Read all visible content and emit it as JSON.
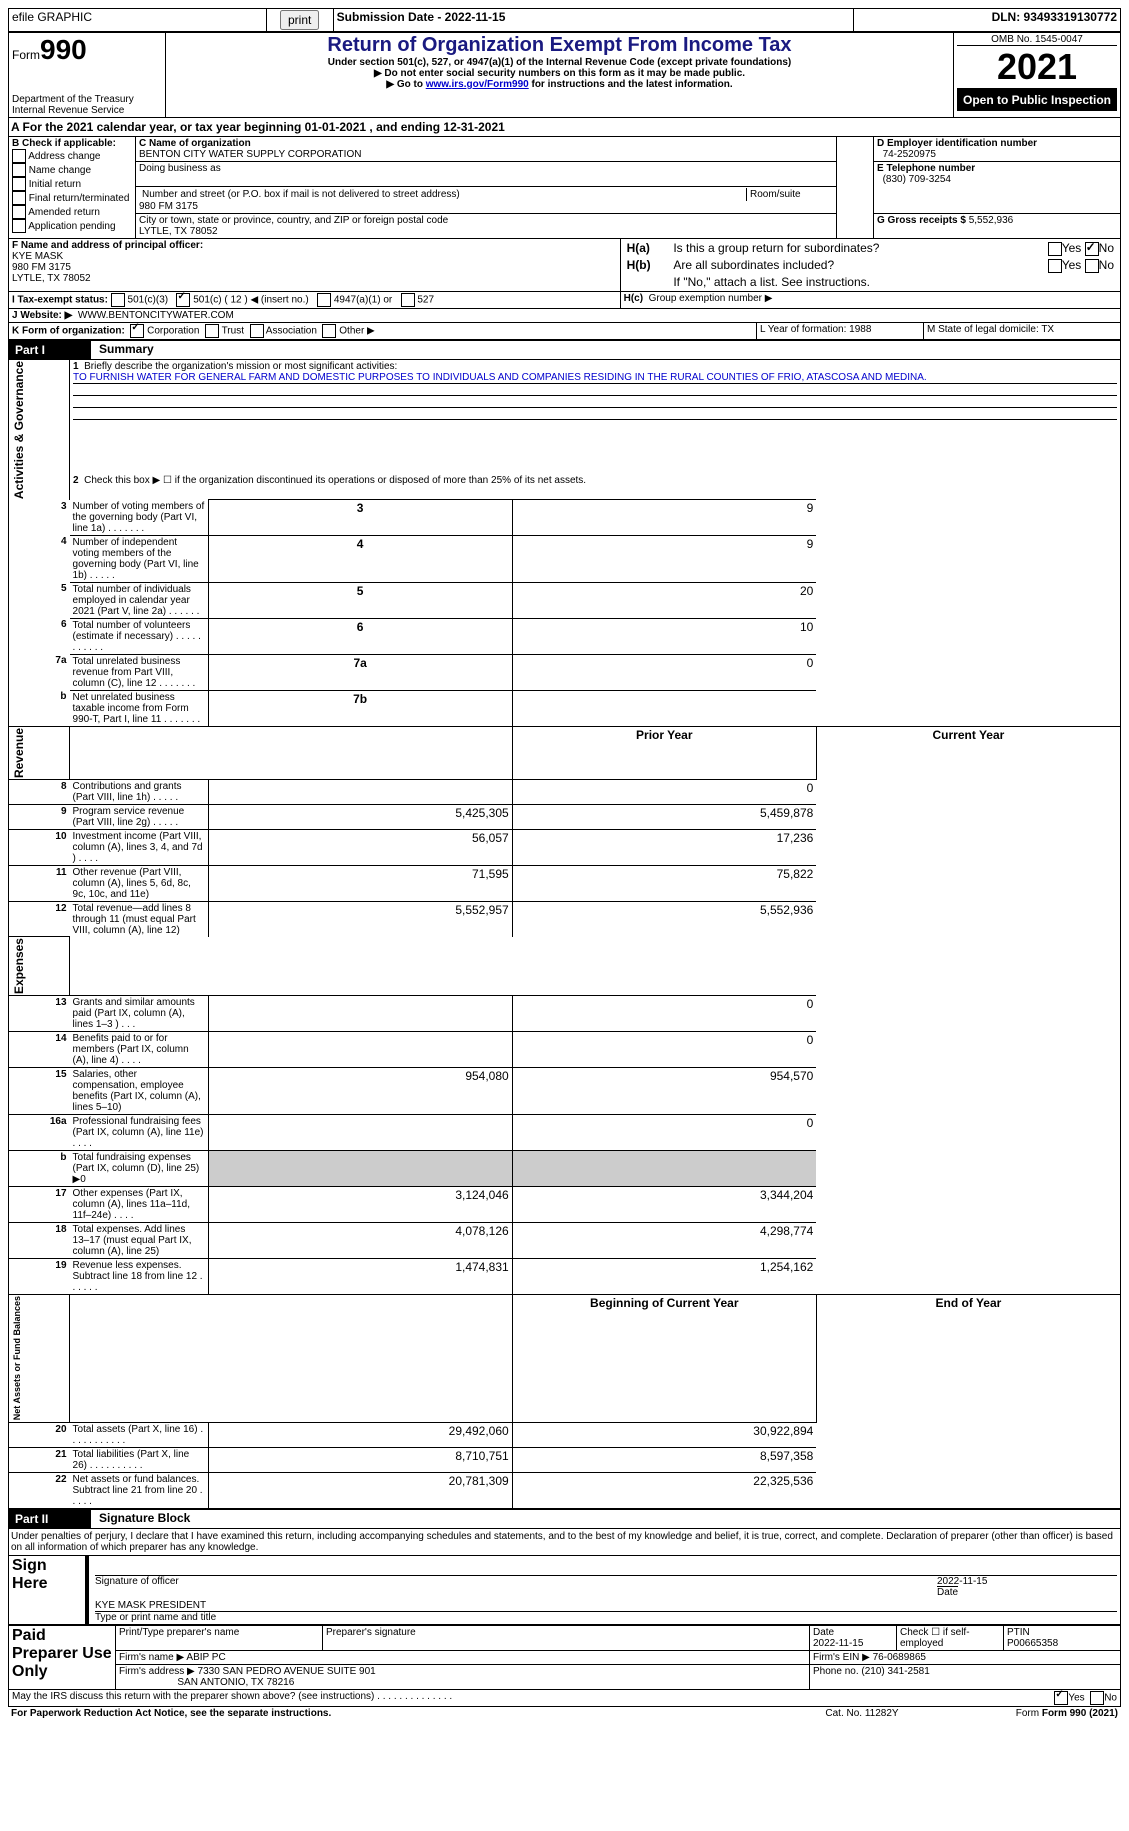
{
  "topbar": {
    "efile": "efile GRAPHIC",
    "print": "print",
    "subdate_label": "Submission Date - 2022-11-15",
    "dln": "DLN: 93493319130772"
  },
  "header": {
    "form_label": "Form",
    "form_num": "990",
    "title": "Return of Organization Exempt From Income Tax",
    "subtitle": "Under section 501(c), 527, or 4947(a)(1) of the Internal Revenue Code (except private foundations)",
    "note1": "▶ Do not enter social security numbers on this form as it may be made public.",
    "note2_pre": "▶ Go to ",
    "note2_link": "www.irs.gov/Form990",
    "note2_post": " for instructions and the latest information.",
    "omb": "OMB No. 1545-0047",
    "year": "2021",
    "open": "Open to Public Inspection",
    "dept": "Department of the Treasury",
    "irs": "Internal Revenue Service"
  },
  "periodA": {
    "pre": "A For the 2021 calendar year, or tax year beginning ",
    "begin": "01-01-2021",
    "mid": " , and ending ",
    "end": "12-31-2021"
  },
  "B": {
    "label": "B Check if applicable:",
    "opts": [
      "Address change",
      "Name change",
      "Initial return",
      "Final return/terminated",
      "Amended return",
      "Application pending"
    ]
  },
  "C": {
    "name_label": "C Name of organization",
    "name": "BENTON CITY WATER SUPPLY CORPORATION",
    "dba_label": "Doing business as",
    "dba": "",
    "street_label": "Number and street (or P.O. box if mail is not delivered to street address)",
    "room_label": "Room/suite",
    "street": "980 FM 3175",
    "city_label": "City or town, state or province, country, and ZIP or foreign postal code",
    "city": "LYTLE, TX  78052"
  },
  "D": {
    "label": "D Employer identification number",
    "val": "74-2520975"
  },
  "E": {
    "label": "E Telephone number",
    "val": "(830) 709-3254"
  },
  "G": {
    "label": "G Gross receipts $",
    "val": "5,552,936"
  },
  "F": {
    "label": "F  Name and address of principal officer:",
    "name": "KYE MASK",
    "addr1": "980 FM 3175",
    "addr2": "LYTLE, TX  78052"
  },
  "H": {
    "a": "Is this a group return for subordinates?",
    "a_yes": "Yes",
    "a_no": "No",
    "b": "Are all subordinates included?",
    "b_yes": "Yes",
    "b_no": "No",
    "b_note": "If \"No,\" attach a list. See instructions.",
    "c": "Group exemption number ▶"
  },
  "I": {
    "label": "I   Tax-exempt status:",
    "c3": "501(c)(3)",
    "c": "501(c) ( 12 ) ◀ (insert no.)",
    "a1": "4947(a)(1) or",
    "527": "527"
  },
  "J": {
    "label": "J   Website: ▶",
    "val": "WWW.BENTONCITYWATER.COM"
  },
  "K": {
    "label": "K Form of organization:",
    "corp": "Corporation",
    "trust": "Trust",
    "assoc": "Association",
    "other": "Other ▶"
  },
  "L": {
    "label": "L Year of formation: 1988"
  },
  "M": {
    "label": "M State of legal domicile: TX"
  },
  "part1": {
    "hdr": "Part I",
    "title": "Summary",
    "q1": "Briefly describe the organization's mission or most significant activities:",
    "mission": "TO FURNISH WATER FOR GENERAL FARM AND DOMESTIC PURPOSES TO INDIVIDUALS AND COMPANIES RESIDING IN THE RURAL COUNTIES OF FRIO, ATASCOSA AND MEDINA.",
    "q2": "Check this box ▶ ☐ if the organization discontinued its operations or disposed of more than 25% of its net assets.",
    "side1": "Activities & Governance",
    "side2": "Revenue",
    "side3": "Expenses",
    "side4": "Net Assets or Fund Balances",
    "prior": "Prior Year",
    "current": "Current Year",
    "begin": "Beginning of Current Year",
    "end": "End of Year",
    "rows_gov": [
      {
        "n": "3",
        "t": "Number of voting members of the governing body (Part VI, line 1a)   .    .    .    .    .    .    .",
        "box": "3",
        "v": "9"
      },
      {
        "n": "4",
        "t": "Number of independent voting members of the governing body (Part VI, line 1b)    .    .    .    .    .",
        "box": "4",
        "v": "9"
      },
      {
        "n": "5",
        "t": "Total number of individuals employed in calendar year 2021 (Part V, line 2a)   .    .    .    .    .    .",
        "box": "5",
        "v": "20"
      },
      {
        "n": "6",
        "t": "Total number of volunteers (estimate if necessary)    .    .    .    .    .    .    .    .    .    .    .",
        "box": "6",
        "v": "10"
      },
      {
        "n": "7a",
        "t": "Total unrelated business revenue from Part VIII, column (C), line 12    .    .    .    .    .    .    .",
        "box": "7a",
        "v": "0"
      },
      {
        "n": "b",
        "t": "Net unrelated business taxable income from Form 990-T, Part I, line 11   .    .    .    .    .    .    .",
        "box": "7b",
        "v": ""
      }
    ],
    "rows_rev": [
      {
        "n": "8",
        "t": "Contributions and grants (Part VIII, line 1h)   .    .    .    .    .",
        "p": "",
        "c": "0"
      },
      {
        "n": "9",
        "t": "Program service revenue (Part VIII, line 2g)    .    .    .    .    .",
        "p": "5,425,305",
        "c": "5,459,878"
      },
      {
        "n": "10",
        "t": "Investment income (Part VIII, column (A), lines 3, 4, and 7d )   .    .    .    .",
        "p": "56,057",
        "c": "17,236"
      },
      {
        "n": "11",
        "t": "Other revenue (Part VIII, column (A), lines 5, 6d, 8c, 9c, 10c, and 11e)",
        "p": "71,595",
        "c": "75,822"
      },
      {
        "n": "12",
        "t": "Total revenue—add lines 8 through 11 (must equal Part VIII, column (A), line 12)",
        "p": "5,552,957",
        "c": "5,552,936"
      }
    ],
    "rows_exp": [
      {
        "n": "13",
        "t": "Grants and similar amounts paid (Part IX, column (A), lines 1–3 )   .    .    .",
        "p": "",
        "c": "0"
      },
      {
        "n": "14",
        "t": "Benefits paid to or for members (Part IX, column (A), line 4)   .    .    .    .",
        "p": "",
        "c": "0"
      },
      {
        "n": "15",
        "t": "Salaries, other compensation, employee benefits (Part IX, column (A), lines 5–10)",
        "p": "954,080",
        "c": "954,570"
      },
      {
        "n": "16a",
        "t": "Professional fundraising fees (Part IX, column (A), line 11e)    .    .    .    .",
        "p": "",
        "c": "0"
      },
      {
        "n": "b",
        "t": "Total fundraising expenses (Part IX, column (D), line 25) ▶0",
        "p": "-",
        "c": "-"
      },
      {
        "n": "17",
        "t": "Other expenses (Part IX, column (A), lines 11a–11d, 11f–24e)   .    .    .    .",
        "p": "3,124,046",
        "c": "3,344,204"
      },
      {
        "n": "18",
        "t": "Total expenses. Add lines 13–17 (must equal Part IX, column (A), line 25)",
        "p": "4,078,126",
        "c": "4,298,774"
      },
      {
        "n": "19",
        "t": "Revenue less expenses. Subtract line 18 from line 12   .    .    .    .    .    .",
        "p": "1,474,831",
        "c": "1,254,162"
      }
    ],
    "rows_net": [
      {
        "n": "20",
        "t": "Total assets (Part X, line 16)   .    .    .    .    .    .    .    .    .    .    .",
        "p": "29,492,060",
        "c": "30,922,894"
      },
      {
        "n": "21",
        "t": "Total liabilities (Part X, line 26)   .    .    .    .    .    .    .    .    .    .",
        "p": "8,710,751",
        "c": "8,597,358"
      },
      {
        "n": "22",
        "t": "Net assets or fund balances. Subtract line 21 from line 20   .    .    .    .    .",
        "p": "20,781,309",
        "c": "22,325,536"
      }
    ]
  },
  "part2": {
    "hdr": "Part II",
    "title": "Signature Block",
    "decl": "Under penalties of perjury, I declare that I have examined this return, including accompanying schedules and statements, and to the best of my knowledge and belief, it is true, correct, and complete. Declaration of preparer (other than officer) is based on all information of which preparer has any knowledge.",
    "sign_here": "Sign Here",
    "sig_officer": "Signature of officer",
    "sig_date": "2022-11-15",
    "date_label": "Date",
    "name_title": "KYE MASK  PRESIDENT",
    "type_name": "Type or print name and title",
    "paid": "Paid Preparer Use Only",
    "pp_name": "Print/Type preparer's name",
    "pp_sig": "Preparer's signature",
    "pp_date_label": "Date",
    "pp_date": "2022-11-15",
    "pp_check": "Check ☐ if self-employed",
    "ptin_label": "PTIN",
    "ptin": "P00665358",
    "firm_name_label": "Firm's name    ▶",
    "firm_name": "ABIP PC",
    "firm_ein_label": "Firm's EIN ▶",
    "firm_ein": "76-0689865",
    "firm_addr_label": "Firm's address ▶",
    "firm_addr1": "7330 SAN PEDRO AVENUE SUITE 901",
    "firm_addr2": "SAN ANTONIO, TX  78216",
    "phone_label": "Phone no.",
    "phone": "(210) 341-2581",
    "discuss": "May the IRS discuss this return with the preparer shown above? (see instructions)   .    .    .    .    .    .    .    .    .    .    .    .    .    .",
    "yes": "Yes",
    "no": "No"
  },
  "footer": {
    "pra": "For Paperwork Reduction Act Notice, see the separate instructions.",
    "cat": "Cat. No. 11282Y",
    "form": "Form 990 (2021)"
  }
}
